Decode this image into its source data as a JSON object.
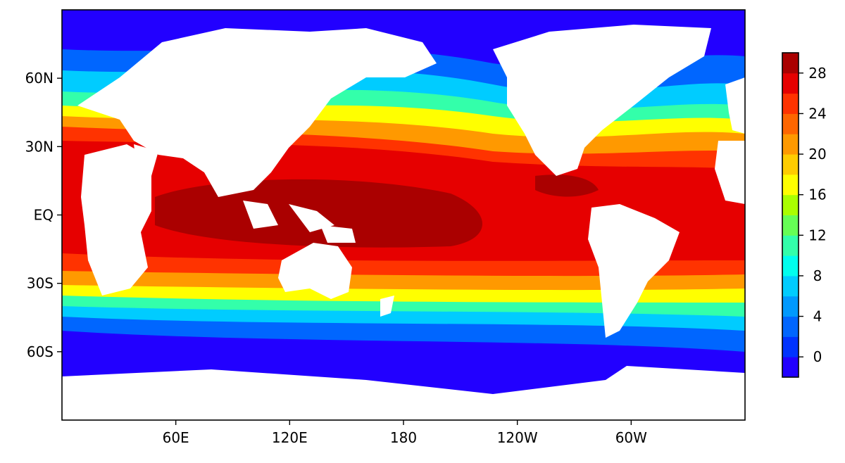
{
  "map": {
    "lat_labels": [
      "60N",
      "30N",
      "EQ",
      "30S",
      "60S"
    ],
    "lat_values": [
      60,
      30,
      0,
      -30,
      -60
    ],
    "lon_labels": [
      "60E",
      "120E",
      "180",
      "120W",
      "60W"
    ],
    "lon_values": [
      60,
      120,
      180,
      240,
      300
    ],
    "lon_range": [
      0,
      360
    ],
    "lat_range": [
      -90,
      90
    ],
    "land_color": "#ffffff"
  },
  "colorbar": {
    "tick_labels": [
      "0",
      "4",
      "8",
      "12",
      "16",
      "20",
      "24",
      "28"
    ],
    "tick_values": [
      0,
      4,
      8,
      12,
      16,
      20,
      24,
      28
    ],
    "range": [
      -2,
      30
    ],
    "levels": [
      -2,
      0,
      2,
      4,
      6,
      8,
      10,
      12,
      14,
      16,
      18,
      20,
      22,
      24,
      26,
      28,
      30
    ],
    "colors": [
      "#2200ff",
      "#0033ff",
      "#0066ff",
      "#0099ff",
      "#00ccff",
      "#00ffee",
      "#33ffaa",
      "#66ff55",
      "#aaff00",
      "#ffff00",
      "#ffcc00",
      "#ff9900",
      "#ff6600",
      "#ff3300",
      "#e60000",
      "#aa0000"
    ]
  }
}
